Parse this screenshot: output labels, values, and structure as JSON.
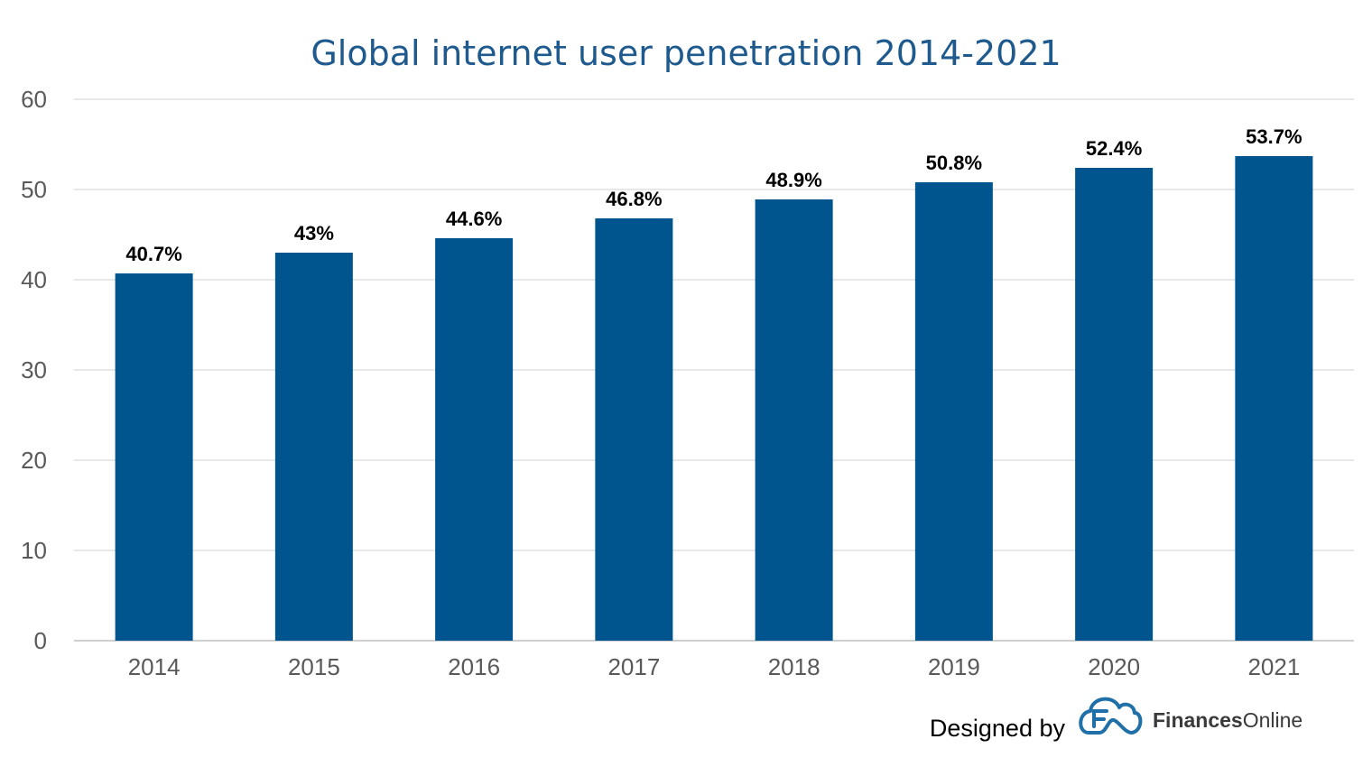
{
  "chart_data": {
    "type": "bar",
    "title": "Global internet user penetration 2014-2021",
    "xlabel": "",
    "ylabel": "",
    "categories": [
      "2014",
      "2015",
      "2016",
      "2017",
      "2018",
      "2019",
      "2020",
      "2021"
    ],
    "values": [
      40.7,
      43,
      44.6,
      46.8,
      48.9,
      50.8,
      52.4,
      53.7
    ],
    "data_labels": [
      "40.7%",
      "43%",
      "44.6%",
      "46.8%",
      "48.9%",
      "50.8%",
      "52.4%",
      "53.7%"
    ],
    "ylim": [
      0,
      60
    ],
    "yticks": [
      0,
      10,
      20,
      30,
      40,
      50,
      60
    ],
    "grid": true,
    "legend": "none",
    "bar_color": "#00558f"
  },
  "credit": {
    "label": "Designed by",
    "brand_bold": "Finances",
    "brand_regular": "Online",
    "logo_icon": "cloud-f-logo-icon",
    "logo_color": "#1f6fa8"
  }
}
